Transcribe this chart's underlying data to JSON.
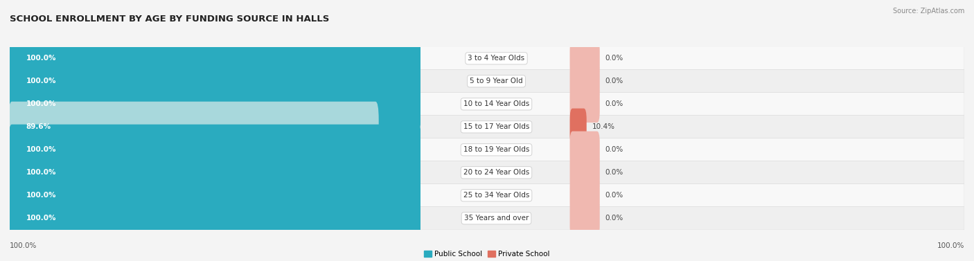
{
  "title": "SCHOOL ENROLLMENT BY AGE BY FUNDING SOURCE IN HALLS",
  "source": "Source: ZipAtlas.com",
  "categories": [
    "3 to 4 Year Olds",
    "5 to 9 Year Old",
    "10 to 14 Year Olds",
    "15 to 17 Year Olds",
    "18 to 19 Year Olds",
    "20 to 24 Year Olds",
    "25 to 34 Year Olds",
    "35 Years and over"
  ],
  "public_values": [
    100.0,
    100.0,
    100.0,
    89.6,
    100.0,
    100.0,
    100.0,
    100.0
  ],
  "private_values": [
    0.0,
    0.0,
    0.0,
    10.4,
    0.0,
    0.0,
    0.0,
    0.0
  ],
  "public_color_full": "#2AABBF",
  "public_color_partial": "#A8D8DC",
  "private_color_nonzero": "#E07060",
  "private_color_zero": "#F0B8B0",
  "row_bg_light": "#EFEFEF",
  "row_bg_white": "#F8F8F8",
  "bar_bg": "#E8E8E8",
  "title_fontsize": 9.5,
  "label_fontsize": 7.5,
  "value_fontsize": 7.5,
  "source_fontsize": 7,
  "legend_fontsize": 7.5,
  "x_left_label": "100.0%",
  "x_right_label": "100.0%"
}
